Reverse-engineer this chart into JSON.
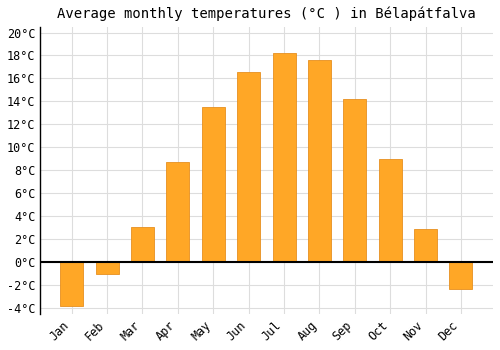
{
  "title": "Average monthly temperatures (°C ) in Bélapátfalva",
  "months": [
    "Jan",
    "Feb",
    "Mar",
    "Apr",
    "May",
    "Jun",
    "Jul",
    "Aug",
    "Sep",
    "Oct",
    "Nov",
    "Dec"
  ],
  "values": [
    -3.8,
    -1.0,
    3.1,
    8.7,
    13.5,
    16.6,
    18.2,
    17.6,
    14.2,
    9.0,
    2.9,
    -2.3
  ],
  "bar_color": "#FFA726",
  "bar_edge_color": "#E69020",
  "ylim": [
    -4.5,
    20.5
  ],
  "yticks": [
    -4,
    -2,
    0,
    2,
    4,
    6,
    8,
    10,
    12,
    14,
    16,
    18,
    20
  ],
  "background_color": "#ffffff",
  "plot_bg_color": "#ffffff",
  "grid_color": "#dddddd",
  "title_fontsize": 10,
  "tick_fontsize": 8.5
}
